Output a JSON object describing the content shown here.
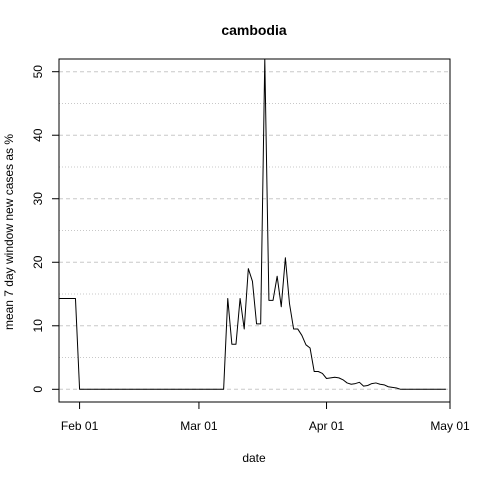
{
  "chart_data": {
    "type": "line",
    "title": "cambodia",
    "xlabel": "date",
    "ylabel": "mean  7  day window new cases as %",
    "xlim": [
      "2020-01-27",
      "2020-05-01"
    ],
    "ylim": [
      -2,
      52
    ],
    "x_ticks": [
      {
        "date": "2020-02-01",
        "label": "Feb 01"
      },
      {
        "date": "2020-03-01",
        "label": "Mar 01"
      },
      {
        "date": "2020-04-01",
        "label": "Apr 01"
      },
      {
        "date": "2020-05-01",
        "label": "May 01"
      }
    ],
    "y_ticks": [
      0,
      10,
      20,
      30,
      40,
      50
    ],
    "y_minor_gridlines": [
      5,
      15,
      25,
      35,
      45
    ],
    "grid": "horizontal-dotted",
    "series": [
      {
        "color": "#000000",
        "x": [
          "2020-01-27",
          "2020-01-31",
          "2020-02-01",
          "2020-02-28",
          "2020-02-29",
          "2020-03-01",
          "2020-03-02",
          "2020-03-03",
          "2020-03-04",
          "2020-03-05",
          "2020-03-06",
          "2020-03-07",
          "2020-03-08",
          "2020-03-09",
          "2020-03-10",
          "2020-03-11",
          "2020-03-12",
          "2020-03-13",
          "2020-03-14",
          "2020-03-15",
          "2020-03-16",
          "2020-03-17",
          "2020-03-18",
          "2020-03-19",
          "2020-03-20",
          "2020-03-21",
          "2020-03-22",
          "2020-03-23",
          "2020-03-24",
          "2020-03-25",
          "2020-03-26",
          "2020-03-27",
          "2020-03-28",
          "2020-03-29",
          "2020-03-30",
          "2020-03-31",
          "2020-04-01",
          "2020-04-02",
          "2020-04-03",
          "2020-04-04",
          "2020-04-05",
          "2020-04-06",
          "2020-04-07",
          "2020-04-08",
          "2020-04-09",
          "2020-04-10",
          "2020-04-11",
          "2020-04-12",
          "2020-04-13",
          "2020-04-14",
          "2020-04-15",
          "2020-04-16",
          "2020-04-17",
          "2020-04-18",
          "2020-04-19",
          "2020-04-20",
          "2020-04-21",
          "2020-04-22",
          "2020-04-23",
          "2020-04-24",
          "2020-04-25",
          "2020-04-26",
          "2020-04-27",
          "2020-04-28",
          "2020-04-29",
          "2020-04-30"
        ],
        "y": [
          14.3,
          14.3,
          0,
          0,
          0,
          0,
          0,
          0,
          0,
          0,
          0,
          0,
          14.3,
          7.1,
          7.1,
          14.3,
          9.5,
          19,
          17,
          10.3,
          10.3,
          52,
          14,
          14,
          17.8,
          13,
          20.7,
          13.5,
          9.5,
          9.5,
          8.5,
          7,
          6.5,
          2.8,
          2.8,
          2.5,
          1.7,
          1.8,
          1.9,
          1.8,
          1.5,
          1.0,
          0.8,
          0.9,
          1.1,
          0.5,
          0.6,
          0.9,
          1.0,
          0.8,
          0.7,
          0.4,
          0.3,
          0.2,
          0,
          0,
          0,
          0,
          0,
          0,
          0,
          0,
          0,
          0,
          0,
          0
        ]
      }
    ]
  }
}
